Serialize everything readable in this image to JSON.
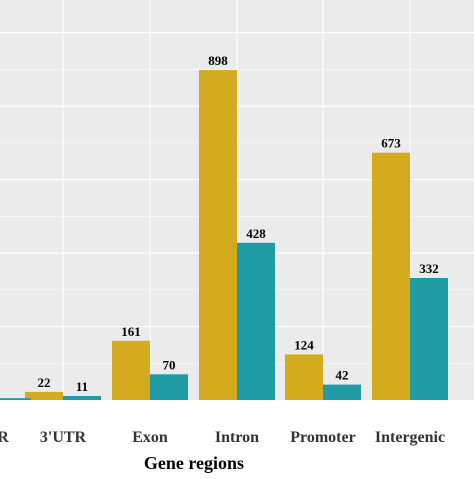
{
  "chart_data": {
    "type": "bar",
    "title": "",
    "xlabel": "Gene regions",
    "ylabel": "",
    "categories": [
      "R",
      "3'UTR",
      "Exon",
      "Intron",
      "Promoter",
      "Intergenic"
    ],
    "series": [
      {
        "name": "",
        "color": "#D4AA1E",
        "values": [
          null,
          22,
          161,
          898,
          124,
          673
        ]
      },
      {
        "name": "",
        "color": "#1E9BA3",
        "values": [
          5,
          11,
          70,
          428,
          42,
          332
        ]
      }
    ],
    "ylim": [
      0,
      1000
    ],
    "grid": true,
    "panel_background": "#EBEBEB",
    "grid_color": "#FFFFFF",
    "legend": "none"
  }
}
